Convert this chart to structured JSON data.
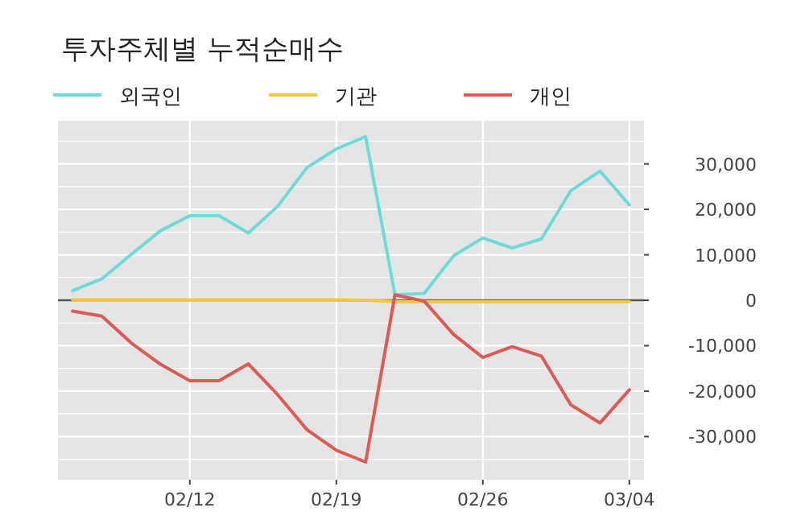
{
  "chart_data": {
    "type": "line",
    "title": "투자주체별 누적순매수",
    "categories": [
      null,
      null,
      null,
      null,
      "02/12",
      null,
      null,
      null,
      null,
      "02/19",
      null,
      null,
      null,
      null,
      "02/26",
      null,
      null,
      null,
      null,
      "03/04"
    ],
    "series": [
      {
        "name": "외국인",
        "color": "#6ddcd8",
        "values": [
          2100,
          4700,
          10100,
          15300,
          18600,
          18600,
          14800,
          20700,
          29200,
          33300,
          36000,
          1200,
          1500,
          9800,
          13700,
          11500,
          13500,
          24100,
          28400,
          21000
        ]
      },
      {
        "name": "기관",
        "color": "#f2c83a",
        "values": [
          100,
          100,
          100,
          100,
          100,
          100,
          100,
          100,
          100,
          100,
          0,
          -300,
          -300,
          -300,
          -300,
          -300,
          -300,
          -300,
          -300,
          -300
        ]
      },
      {
        "name": "개인",
        "color": "#dd5a55",
        "values": [
          -2400,
          -3500,
          -9400,
          -14100,
          -17700,
          -17700,
          -14000,
          -20800,
          -28500,
          -33000,
          -35600,
          1200,
          -200,
          -7500,
          -12600,
          -10200,
          -12300,
          -23000,
          -27000,
          -19700
        ]
      }
    ],
    "ylim": [
      -39500,
      39500
    ],
    "yticks": [
      {
        "value": -35000,
        "label": null
      },
      {
        "value": -30000,
        "label": "-30,000"
      },
      {
        "value": -25000,
        "label": null
      },
      {
        "value": -20000,
        "label": "-20,000"
      },
      {
        "value": -15000,
        "label": null
      },
      {
        "value": -10000,
        "label": "-10,000"
      },
      {
        "value": -5000,
        "label": null
      },
      {
        "value": 0,
        "label": "0"
      },
      {
        "value": 5000,
        "label": null
      },
      {
        "value": 10000,
        "label": "10,000"
      },
      {
        "value": 15000,
        "label": null
      },
      {
        "value": 20000,
        "label": "20,000"
      },
      {
        "value": 25000,
        "label": null
      },
      {
        "value": 30000,
        "label": "30,000"
      },
      {
        "value": 35000,
        "label": null
      }
    ],
    "ref_lines": [
      {
        "axis": "y",
        "value": 0,
        "color": "#555555"
      }
    ],
    "grid": true,
    "legend": "top left",
    "line_style": "solid",
    "marker": "none"
  }
}
